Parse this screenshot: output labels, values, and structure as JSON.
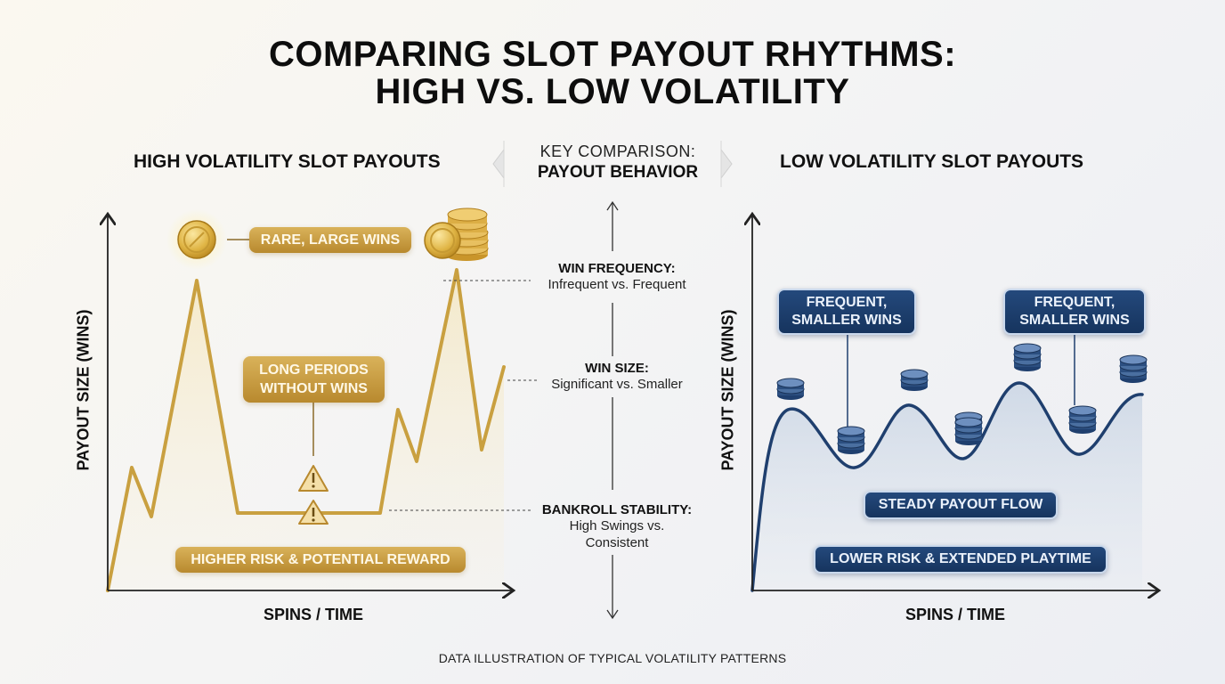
{
  "title": {
    "line1": "COMPARING SLOT PAYOUT RHYTHMS:",
    "line2": "HIGH VS. LOW VOLATILITY"
  },
  "left": {
    "title": "HIGH VOLATILITY SLOT PAYOUTS",
    "ylabel": "PAYOUT SIZE (WINS)",
    "xlabel": "SPINS / TIME",
    "badge_rare": "RARE, LARGE WINS",
    "badge_long": [
      "LONG PERIODS",
      "WITHOUT WINS"
    ],
    "badge_risk": "HIGHER RISK & POTENTIAL REWARD",
    "color": "#c9a040"
  },
  "center": {
    "heading1": "KEY COMPARISON:",
    "heading2": "PAYOUT BEHAVIOR",
    "items": [
      {
        "label": "WIN FREQUENCY:",
        "detail": [
          "Infrequent vs. Frequent"
        ]
      },
      {
        "label": "WIN SIZE:",
        "detail": [
          "Significant vs. Smaller"
        ]
      },
      {
        "label": "BANKROLL STABILITY:",
        "detail": [
          "High Swings vs.",
          "Consistent"
        ]
      }
    ]
  },
  "right": {
    "title": "LOW VOLATILITY SLOT PAYOUTS",
    "ylabel": "PAYOUT SIZE (WINS)",
    "xlabel": "SPINS / TIME",
    "badge_frequent": [
      "FREQUENT,",
      "SMALLER WINS"
    ],
    "badge_steady": "STEADY PAYOUT FLOW",
    "badge_risk": "LOWER RISK & EXTENDED PLAYTIME",
    "color": "#1f3f6e"
  },
  "footer": "DATA ILLUSTRATION OF TYPICAL VOLATILITY PATTERNS",
  "icons": [
    "gold-coin-icon",
    "coin-stack-icon",
    "warning-icon",
    "blue-coin-stack-icon"
  ]
}
